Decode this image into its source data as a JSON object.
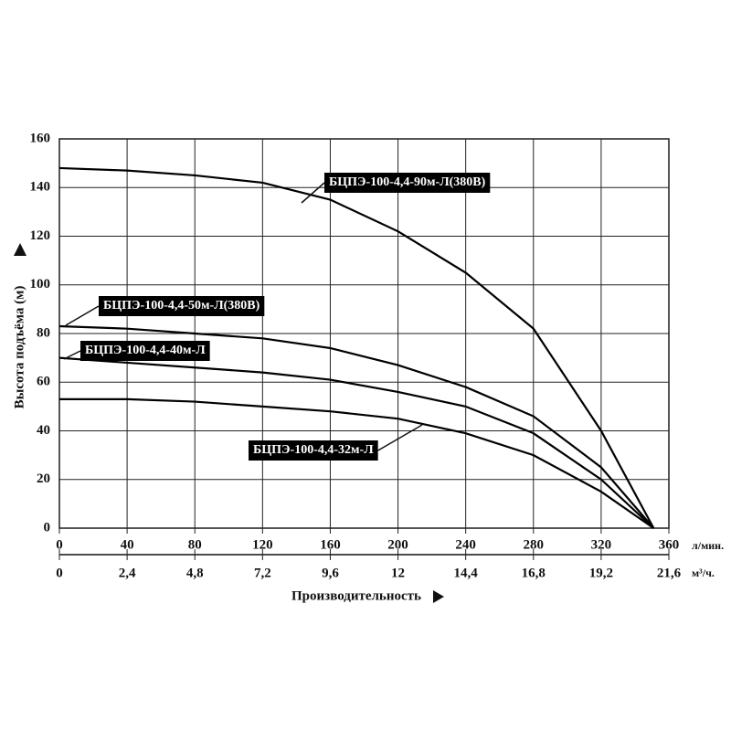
{
  "chart_data": {
    "type": "line",
    "x_label": "Производительность",
    "y_label": "Высота подъёма (м)",
    "x_unit": "л/мин.",
    "x2_unit": "м³/ч.",
    "x": [
      0,
      40,
      80,
      120,
      160,
      200,
      240,
      280,
      320,
      351
    ],
    "series": [
      {
        "name": "БЦПЭ-100-4,4-90м-Л(380В)",
        "color": "#000000",
        "values": [
          148,
          147,
          145,
          142,
          135,
          122,
          105,
          82,
          40,
          0
        ]
      },
      {
        "name": "БЦПЭ-100-4,4-50м-Л(380В)",
        "color": "#000000",
        "values": [
          83,
          82,
          80,
          78,
          74,
          67,
          58,
          46,
          25,
          0
        ]
      },
      {
        "name": "БЦПЭ-100-4,4-40м-Л",
        "color": "#000000",
        "values": [
          70,
          68,
          66,
          64,
          61,
          56,
          50,
          39,
          20,
          0
        ]
      },
      {
        "name": "БЦПЭ-100-4,4-32м-Л",
        "color": "#000000",
        "values": [
          53,
          53,
          52,
          50,
          48,
          45,
          39,
          30,
          15,
          0
        ]
      }
    ],
    "xlim": [
      0,
      360
    ],
    "xticks": [
      0,
      40,
      80,
      120,
      160,
      200,
      240,
      280,
      320,
      360
    ],
    "x2lim": [
      0,
      21.6
    ],
    "x2ticks": [
      0,
      {
        "value": 2.4,
        "label": "2,4"
      },
      {
        "value": 4.8,
        "label": "4,8"
      },
      {
        "value": 7.2,
        "label": "7,2"
      },
      {
        "value": 9.6,
        "label": "9,6"
      },
      12,
      {
        "value": 14.4,
        "label": "14,4"
      },
      {
        "value": 16.8,
        "label": "16,8"
      },
      {
        "value": 19.2,
        "label": "19,2"
      },
      {
        "value": 21.6,
        "label": "21,6"
      }
    ],
    "ylim": [
      0,
      160
    ],
    "yticks": [
      0,
      20,
      40,
      60,
      80,
      100,
      120,
      140,
      160
    ],
    "grid": true
  }
}
